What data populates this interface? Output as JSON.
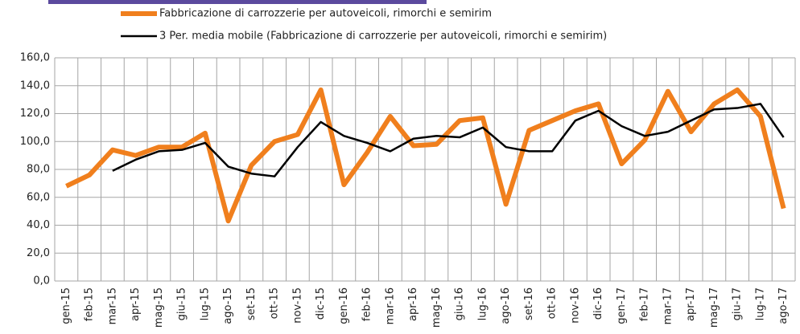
{
  "chart_data": {
    "type": "line",
    "categories": [
      "gen-15",
      "feb-15",
      "mar-15",
      "apr-15",
      "mag-15",
      "giu-15",
      "lug-15",
      "ago-15",
      "set-15",
      "ott-15",
      "nov-15",
      "dic-15",
      "gen-16",
      "feb-16",
      "mar-16",
      "apr-16",
      "mag-16",
      "giu-16",
      "lug-16",
      "ago-16",
      "set-16",
      "ott-16",
      "nov-16",
      "dic-16",
      "gen-17",
      "feb-17",
      "mar-17",
      "apr-17",
      "mag-17",
      "giu-17",
      "lug-17",
      "ago-17"
    ],
    "series": [
      {
        "name": "Fabbricazione di carrozzerie per autoveicoli, rimorchi e semirim",
        "color": "#f07f1d",
        "width": 6,
        "values": [
          68,
          76,
          94,
          90,
          96,
          96,
          106,
          43,
          83,
          100,
          105,
          137,
          69,
          92,
          118,
          97,
          98,
          115,
          117,
          55,
          108,
          115,
          122,
          127,
          84,
          101,
          136,
          107,
          127,
          137,
          118,
          52
        ]
      },
      {
        "name": "3 Per. media mobile (Fabbricazione di carrozzerie per autoveicoli, rimorchi e semirim)",
        "color": "#000000",
        "width": 2.5,
        "values": [
          null,
          null,
          79,
          87,
          93,
          94,
          99,
          82,
          77,
          75,
          96,
          114,
          104,
          99,
          93,
          102,
          104,
          103,
          110,
          96,
          93,
          93,
          115,
          122,
          111,
          104,
          107,
          115,
          123,
          124,
          127,
          103
        ]
      }
    ],
    "ylim": [
      0,
      160
    ],
    "yticks": [
      {
        "value": 0,
        "label": "0,0"
      },
      {
        "value": 20,
        "label": "20,0"
      },
      {
        "value": 40,
        "label": "40,0"
      },
      {
        "value": 60,
        "label": "60,0"
      },
      {
        "value": 80,
        "label": "80,0"
      },
      {
        "value": 100,
        "label": "100,0"
      },
      {
        "value": 120,
        "label": "120,0"
      },
      {
        "value": 140,
        "label": "140,0"
      },
      {
        "value": 160,
        "label": "160,0"
      }
    ],
    "grid": true
  }
}
